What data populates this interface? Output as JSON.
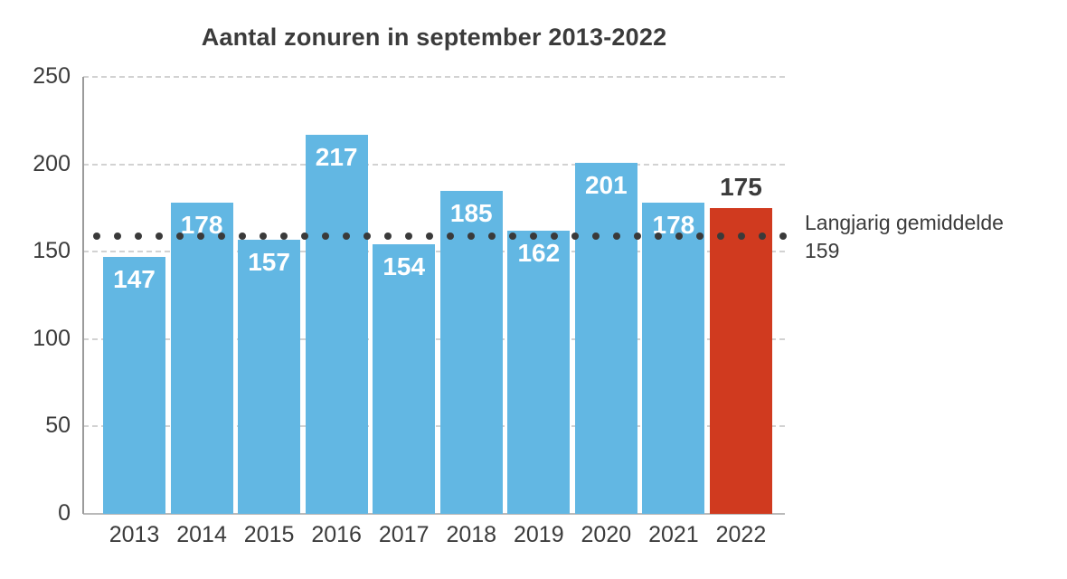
{
  "title": "Aantal zonuren in september 2013-2022",
  "colors": {
    "bar": "#62b7e3",
    "bar_highlight": "#d03a1f",
    "text": "#3b3b3b",
    "grid": "#d2d2d2",
    "axis": "#9b9b9b",
    "average_dots": "#3a3a3a",
    "label_inside_bar": "#ffffff"
  },
  "chart_data": {
    "type": "bar",
    "title": "Aantal zonuren in september 2013-2022",
    "categories": [
      "2013",
      "2014",
      "2015",
      "2016",
      "2017",
      "2018",
      "2019",
      "2020",
      "2021",
      "2022"
    ],
    "values": [
      147,
      178,
      157,
      217,
      154,
      185,
      162,
      201,
      178,
      175
    ],
    "highlight_category": "2022",
    "highlight_value": 175,
    "xlabel": "",
    "ylabel": "",
    "ylim": [
      0,
      250
    ],
    "yticks": [
      0,
      50,
      100,
      150,
      200,
      250
    ],
    "grid": "horizontal-dashed",
    "legend": "none",
    "average_line": {
      "value": 159,
      "style": "dotted",
      "label": "Langjarig gemiddelde",
      "label_value": "159"
    }
  }
}
